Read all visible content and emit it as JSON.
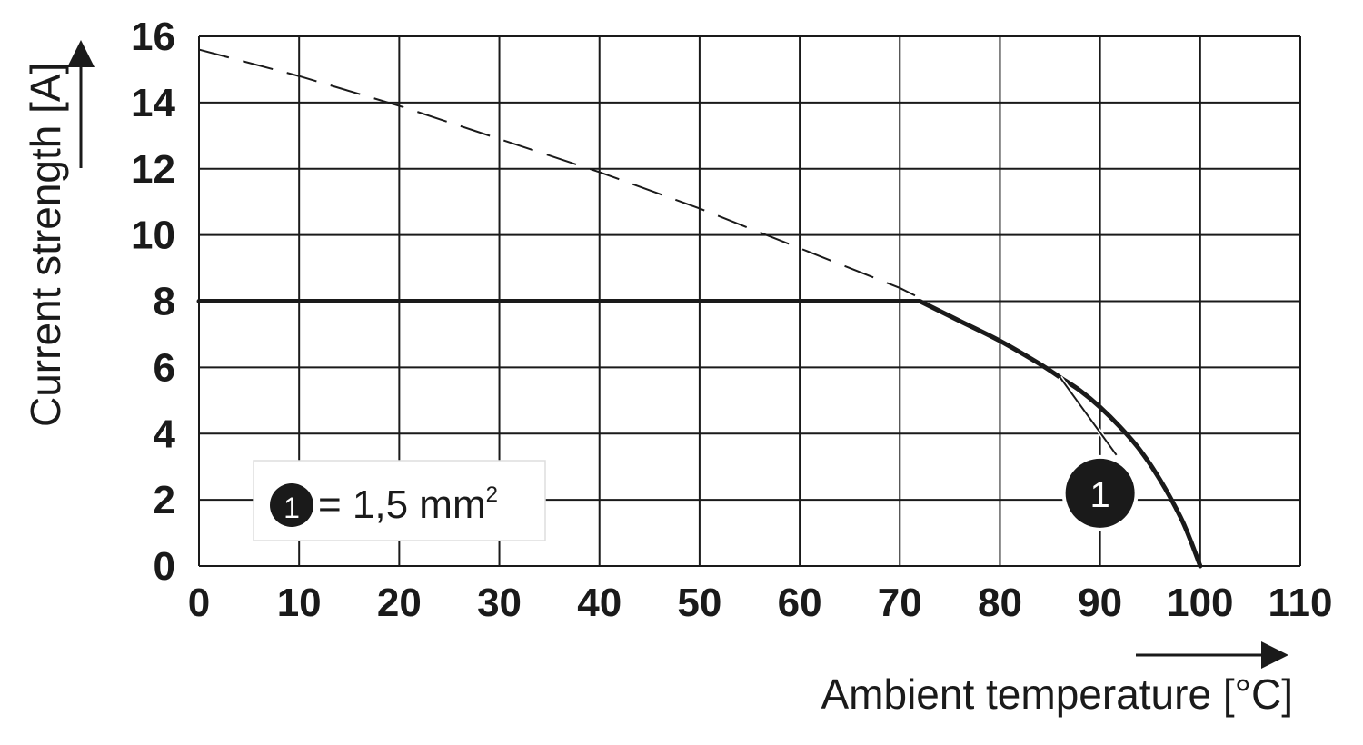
{
  "chart_data": {
    "type": "line",
    "title": "",
    "xlabel": "Ambient temperature [°C]",
    "ylabel": "Current strength [A]",
    "xlim": [
      0,
      110
    ],
    "ylim": [
      0,
      16
    ],
    "xticks": [
      "0",
      "10",
      "20",
      "30",
      "40",
      "50",
      "60",
      "70",
      "80",
      "90",
      "100",
      "110"
    ],
    "yticks": [
      "0",
      "2",
      "4",
      "6",
      "8",
      "10",
      "12",
      "14",
      "16"
    ],
    "grid": true,
    "series": [
      {
        "name": "",
        "style": "solid",
        "color": "#1a1a1a",
        "x": [
          0,
          72,
          76,
          80,
          84,
          86,
          88,
          90,
          92,
          94,
          96,
          98,
          99,
          100
        ],
        "y": [
          8,
          8,
          7.4,
          6.8,
          6.1,
          5.7,
          5.3,
          4.8,
          4.2,
          3.5,
          2.6,
          1.5,
          0.8,
          0
        ]
      },
      {
        "name": "",
        "style": "dashed",
        "color": "#1a1a1a",
        "x": [
          0,
          10,
          20,
          30,
          40,
          50,
          60,
          70,
          72
        ],
        "y": [
          15.6,
          14.8,
          13.9,
          12.9,
          11.9,
          10.8,
          9.6,
          8.4,
          8.1
        ]
      }
    ],
    "annotations": [
      {
        "label": "1",
        "target_x": 86,
        "target_y": 5.7,
        "marker_x": 90,
        "marker_y": 2.2
      }
    ],
    "legend": {
      "position": "bottom-left",
      "marker_label": "1",
      "text": "= 1,5 mm",
      "superscript": "2"
    }
  }
}
